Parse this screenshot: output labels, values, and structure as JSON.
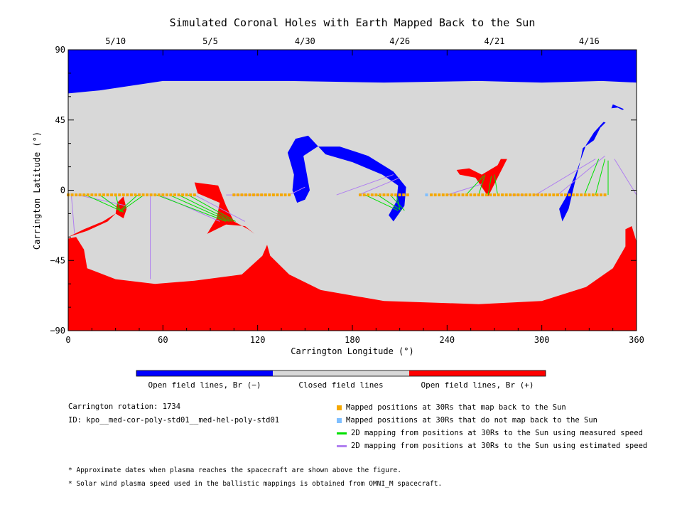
{
  "chart_data": {
    "type": "map",
    "title": "Simulated Coronal Holes with Earth Mapped Back to the Sun",
    "xlabel": "Carrington Longitude (°)",
    "ylabel": "Carrington Latitude (°)",
    "xlim": [
      0,
      360
    ],
    "ylim": [
      -90,
      90
    ],
    "x_ticks": [
      "0",
      "60",
      "120",
      "180",
      "240",
      "300",
      "360"
    ],
    "y_ticks": [
      "90",
      "45",
      "0",
      "−45",
      "−90"
    ],
    "x_tick_values": [
      0,
      60,
      120,
      180,
      240,
      300,
      360
    ],
    "y_tick_values": [
      90,
      45,
      0,
      -45,
      -90
    ],
    "top_dates": [
      {
        "label": "5/10",
        "lon": 30
      },
      {
        "label": "5/5",
        "lon": 90
      },
      {
        "label": "4/30",
        "lon": 150
      },
      {
        "label": "4/26",
        "lon": 210
      },
      {
        "label": "4/21",
        "lon": 270
      },
      {
        "label": "4/16",
        "lon": 330
      }
    ],
    "colorbar": [
      {
        "label": "Open field lines, Br (−)",
        "color": "#0000ff"
      },
      {
        "label": "Closed field lines",
        "color": "#d8d8d8"
      },
      {
        "label": "Open field lines, Br (+)",
        "color": "#ff0000"
      }
    ],
    "colors": {
      "negative": "#0000ff",
      "closed": "#d8d8d8",
      "positive": "#ff0000",
      "mapped": "#f5a800",
      "unmapped": "#7fbfff",
      "measured": "#00e000",
      "estimated": "#b07ff0"
    },
    "regions": {
      "negative": [
        [
          [
            0,
            90
          ],
          [
            360,
            90
          ],
          [
            360,
            69
          ],
          [
            338,
            70
          ],
          [
            300,
            69
          ],
          [
            260,
            70
          ],
          [
            200,
            69
          ],
          [
            140,
            70
          ],
          [
            60,
            70
          ],
          [
            20,
            64
          ],
          [
            0,
            62
          ]
        ],
        [
          [
            326,
            27
          ],
          [
            333,
            32
          ],
          [
            337,
            40
          ],
          [
            344,
            47
          ],
          [
            352,
            52
          ],
          [
            345,
            55
          ],
          [
            342,
            47
          ],
          [
            333,
            37
          ],
          [
            328,
            29
          ],
          [
            322,
            12
          ],
          [
            315,
            -5
          ],
          [
            311,
            -12
          ],
          [
            313,
            -20
          ],
          [
            317,
            -12
          ],
          [
            321,
            5
          ],
          [
            324,
            17
          ]
        ],
        [
          [
            152,
            35
          ],
          [
            144,
            33
          ],
          [
            139,
            24
          ],
          [
            143,
            10
          ],
          [
            142,
            0
          ],
          [
            145,
            -8
          ],
          [
            150,
            -6
          ],
          [
            153,
            0
          ],
          [
            151,
            11
          ],
          [
            149,
            22
          ],
          [
            158,
            28
          ],
          [
            172,
            28
          ],
          [
            190,
            22
          ],
          [
            206,
            12
          ],
          [
            214,
            2
          ],
          [
            213,
            -10
          ],
          [
            206,
            -20
          ],
          [
            203,
            -16
          ],
          [
            208,
            -7
          ],
          [
            209,
            3
          ],
          [
            199,
            10
          ],
          [
            180,
            18
          ],
          [
            163,
            23
          ]
        ]
      ],
      "positive": [
        [
          [
            0,
            -90
          ],
          [
            360,
            -90
          ],
          [
            360,
            -33
          ],
          [
            357,
            -23
          ],
          [
            353,
            -25
          ],
          [
            353,
            -36
          ],
          [
            345,
            -50
          ],
          [
            328,
            -62
          ],
          [
            300,
            -71
          ],
          [
            260,
            -73
          ],
          [
            200,
            -71
          ],
          [
            160,
            -64
          ],
          [
            140,
            -54
          ],
          [
            128,
            -42
          ],
          [
            126,
            -35
          ],
          [
            123,
            -42
          ],
          [
            110,
            -54
          ],
          [
            80,
            -58
          ],
          [
            55,
            -60
          ],
          [
            30,
            -57
          ],
          [
            12,
            -50
          ],
          [
            10,
            -38
          ],
          [
            5,
            -30
          ],
          [
            0,
            -31
          ]
        ],
        [
          [
            80,
            5
          ],
          [
            95,
            3
          ],
          [
            100,
            -10
          ],
          [
            105,
            -20
          ],
          [
            114,
            -25
          ],
          [
            118,
            -28
          ],
          [
            112,
            -23
          ],
          [
            100,
            -22
          ],
          [
            88,
            -28
          ],
          [
            94,
            -18
          ],
          [
            96,
            -8
          ],
          [
            82,
            -2
          ]
        ],
        [
          [
            35,
            -4
          ],
          [
            37,
            -12
          ],
          [
            35,
            -18
          ],
          [
            30,
            -15
          ],
          [
            31,
            -8
          ]
        ],
        [
          [
            30,
            -15
          ],
          [
            22,
            -20
          ],
          [
            10,
            -25
          ],
          [
            0,
            -30
          ],
          [
            12,
            -26
          ],
          [
            25,
            -20
          ]
        ],
        [
          [
            246,
            13
          ],
          [
            254,
            14
          ],
          [
            262,
            10
          ],
          [
            272,
            16
          ],
          [
            274,
            20
          ],
          [
            278,
            20
          ],
          [
            270,
            4
          ],
          [
            266,
            -4
          ],
          [
            262,
            2
          ],
          [
            258,
            8
          ],
          [
            248,
            10
          ]
        ]
      ],
      "closed_islands": [
        [
          [
            334,
            45
          ],
          [
            342,
            43
          ],
          [
            352,
            45
          ],
          [
            356,
            49
          ],
          [
            348,
            53
          ],
          [
            340,
            52
          ],
          [
            334,
            48
          ]
        ]
      ]
    },
    "mapped_points_lat": -3,
    "mapped_segments": [
      [
        0,
        80
      ],
      [
        105,
        140
      ],
      [
        185,
        215
      ],
      [
        230,
        340
      ]
    ],
    "unmapped_points": [
      [
        227,
        -3
      ]
    ],
    "measured_speed_lines": [
      [
        11,
        -3,
        35,
        -14
      ],
      [
        20,
        -3,
        35,
        -14
      ],
      [
        30,
        -3,
        33,
        -14
      ],
      [
        44,
        -3,
        33,
        -13
      ],
      [
        48,
        -3,
        34,
        -13
      ],
      [
        56,
        -3,
        100,
        -20
      ],
      [
        64,
        -3,
        102,
        -20
      ],
      [
        70,
        -3,
        104,
        -20
      ],
      [
        76,
        -3,
        106,
        -20
      ],
      [
        188,
        -3,
        209,
        -13
      ],
      [
        196,
        -3,
        211,
        -13
      ],
      [
        204,
        -3,
        213,
        -13
      ],
      [
        208,
        -3,
        210,
        -12
      ],
      [
        252,
        -3,
        263,
        9
      ],
      [
        260,
        -3,
        264,
        10
      ],
      [
        266,
        -3,
        268,
        9
      ],
      [
        272,
        -3,
        270,
        10
      ],
      [
        327,
        -3,
        336,
        20
      ],
      [
        334,
        -3,
        340,
        20
      ],
      [
        342,
        -3,
        342,
        19
      ]
    ],
    "estimated_speed_lines": [
      [
        2,
        -3,
        4,
        -28
      ],
      [
        6,
        -3,
        37,
        -10
      ],
      [
        52,
        -3,
        52,
        -57
      ],
      [
        58,
        -3,
        96,
        -20
      ],
      [
        80,
        -3,
        112,
        -20
      ],
      [
        100,
        -3,
        124,
        -3
      ],
      [
        140,
        -3,
        150,
        2
      ],
      [
        170,
        -3,
        206,
        10
      ],
      [
        184,
        -3,
        210,
        8
      ],
      [
        240,
        -3,
        262,
        4
      ],
      [
        280,
        -3,
        290,
        -3
      ],
      [
        296,
        -3,
        334,
        20
      ],
      [
        310,
        -3,
        340,
        22
      ],
      [
        360,
        -3,
        346,
        20
      ]
    ]
  },
  "info": {
    "carrington_rotation": "Carrington rotation: 1734",
    "id": "ID: kpo__med-cor-poly-std01__med-hel-poly-std01"
  },
  "legend": [
    {
      "key": "mapped",
      "type": "square",
      "color": "#f5a800",
      "label": "Mapped positions at 30Rs that map back to the Sun"
    },
    {
      "key": "unmapped",
      "type": "square",
      "color": "#7fbfff",
      "label": "Mapped positions at 30Rs that do not map back to the Sun"
    },
    {
      "key": "measured",
      "type": "line",
      "color": "#00e000",
      "label": "2D mapping from positions at 30Rs to the Sun using measured speed"
    },
    {
      "key": "estimated",
      "type": "line",
      "color": "#b07ff0",
      "label": "2D mapping from positions at 30Rs to the Sun using estimated speed"
    }
  ],
  "notes": [
    "* Approximate dates when plasma reaches the spacecraft are shown above the figure.",
    "* Solar wind plasma speed used in the ballistic mappings is obtained from OMNI_M spacecraft."
  ]
}
